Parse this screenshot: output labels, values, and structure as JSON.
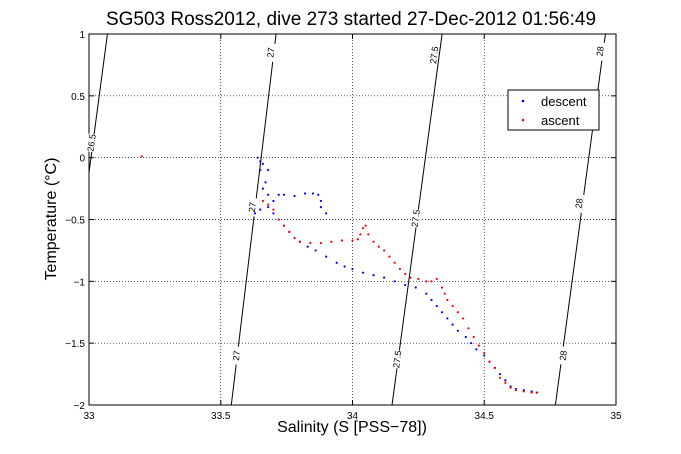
{
  "chart_data": {
    "type": "scatter",
    "title": "SG503 Ross2012, dive 273 started 27-Dec-2012 01:56:49",
    "xlabel": "Salinity (S [PSS−78])",
    "ylabel": "Temperature (°C)",
    "xlim": [
      33,
      35
    ],
    "ylim": [
      -2,
      1
    ],
    "xticks": [
      33,
      33.5,
      34,
      34.5,
      35
    ],
    "xtick_labels": [
      "33",
      "33.5",
      "34",
      "34.5",
      "35"
    ],
    "yticks": [
      -2,
      -1.5,
      -1,
      -0.5,
      0,
      0.5,
      1
    ],
    "ytick_labels": [
      "−2",
      "−1.5",
      "−1",
      "−0.5",
      "0",
      "0.5",
      "1"
    ],
    "grid": true,
    "legend_position": "top-right",
    "series": [
      {
        "name": "descent",
        "color": "#0000ff",
        "points": [
          [
            33.64,
            0.0
          ],
          [
            33.65,
            -0.03
          ],
          [
            33.66,
            -0.05
          ],
          [
            33.68,
            -0.1
          ],
          [
            33.65,
            -0.1
          ],
          [
            33.67,
            -0.2
          ],
          [
            33.66,
            -0.25
          ],
          [
            33.68,
            -0.3
          ],
          [
            33.7,
            -0.35
          ],
          [
            33.72,
            -0.3
          ],
          [
            33.74,
            -0.3
          ],
          [
            33.78,
            -0.31
          ],
          [
            33.82,
            -0.29
          ],
          [
            33.85,
            -0.29
          ],
          [
            33.87,
            -0.3
          ],
          [
            33.88,
            -0.35
          ],
          [
            33.88,
            -0.4
          ],
          [
            33.9,
            -0.45
          ],
          [
            33.63,
            -0.45
          ],
          [
            33.65,
            -0.42
          ],
          [
            33.68,
            -0.4
          ],
          [
            33.7,
            -0.45
          ],
          [
            33.72,
            -0.5
          ],
          [
            33.74,
            -0.55
          ],
          [
            33.76,
            -0.6
          ],
          [
            33.78,
            -0.65
          ],
          [
            33.8,
            -0.68
          ],
          [
            33.83,
            -0.72
          ],
          [
            33.86,
            -0.75
          ],
          [
            33.9,
            -0.8
          ],
          [
            33.94,
            -0.85
          ],
          [
            33.97,
            -0.88
          ],
          [
            34.0,
            -0.9
          ],
          [
            34.04,
            -0.93
          ],
          [
            34.08,
            -0.95
          ],
          [
            34.12,
            -0.97
          ],
          [
            34.16,
            -1.0
          ],
          [
            34.2,
            -1.03
          ],
          [
            34.24,
            -1.05
          ],
          [
            34.28,
            -1.1
          ],
          [
            34.3,
            -1.15
          ],
          [
            34.32,
            -1.2
          ],
          [
            34.34,
            -1.25
          ],
          [
            34.36,
            -1.3
          ],
          [
            34.38,
            -1.35
          ],
          [
            34.4,
            -1.4
          ],
          [
            34.43,
            -1.45
          ],
          [
            34.45,
            -1.5
          ],
          [
            34.47,
            -1.55
          ],
          [
            34.5,
            -1.6
          ],
          [
            34.52,
            -1.65
          ],
          [
            34.54,
            -1.7
          ],
          [
            34.56,
            -1.75
          ],
          [
            34.58,
            -1.8
          ],
          [
            34.6,
            -1.85
          ],
          [
            34.62,
            -1.87
          ],
          [
            34.65,
            -1.88
          ],
          [
            34.68,
            -1.89
          ],
          [
            34.7,
            -1.9
          ]
        ]
      },
      {
        "name": "ascent",
        "color": "#ff0000",
        "points": [
          [
            33.2,
            0.01
          ],
          [
            33.66,
            -0.35
          ],
          [
            33.68,
            -0.38
          ],
          [
            33.7,
            -0.42
          ],
          [
            33.72,
            -0.5
          ],
          [
            33.74,
            -0.55
          ],
          [
            33.76,
            -0.6
          ],
          [
            33.78,
            -0.65
          ],
          [
            33.8,
            -0.68
          ],
          [
            33.84,
            -0.69
          ],
          [
            33.88,
            -0.69
          ],
          [
            33.92,
            -0.68
          ],
          [
            33.96,
            -0.67
          ],
          [
            34.0,
            -0.67
          ],
          [
            34.02,
            -0.66
          ],
          [
            34.03,
            -0.62
          ],
          [
            34.04,
            -0.57
          ],
          [
            34.05,
            -0.55
          ],
          [
            34.06,
            -0.62
          ],
          [
            34.08,
            -0.68
          ],
          [
            34.1,
            -0.72
          ],
          [
            34.12,
            -0.75
          ],
          [
            34.14,
            -0.8
          ],
          [
            34.16,
            -0.85
          ],
          [
            34.18,
            -0.9
          ],
          [
            34.2,
            -0.94
          ],
          [
            34.22,
            -0.97
          ],
          [
            34.25,
            -0.98
          ],
          [
            34.28,
            -1.0
          ],
          [
            34.3,
            -1.0
          ],
          [
            34.32,
            -0.98
          ],
          [
            34.34,
            -1.05
          ],
          [
            34.35,
            -1.1
          ],
          [
            34.36,
            -1.15
          ],
          [
            34.38,
            -1.2
          ],
          [
            34.4,
            -1.25
          ],
          [
            34.42,
            -1.3
          ],
          [
            34.44,
            -1.38
          ],
          [
            34.46,
            -1.45
          ],
          [
            34.48,
            -1.52
          ],
          [
            34.5,
            -1.58
          ],
          [
            34.52,
            -1.65
          ],
          [
            34.54,
            -1.7
          ],
          [
            34.56,
            -1.78
          ],
          [
            34.58,
            -1.82
          ],
          [
            34.6,
            -1.86
          ],
          [
            34.62,
            -1.88
          ],
          [
            34.65,
            -1.89
          ],
          [
            34.68,
            -1.9
          ],
          [
            34.7,
            -1.9
          ]
        ]
      }
    ],
    "contours": [
      {
        "label": "26.5",
        "points": [
          [
            33.0,
            -0.12
          ],
          [
            33.07,
            1.0
          ]
        ],
        "label_positions": [
          [
            33.01,
            0.12
          ]
        ]
      },
      {
        "label": "27",
        "points": [
          [
            33.54,
            -2.0
          ],
          [
            33.71,
            1.0
          ]
        ],
        "label_positions": [
          [
            33.56,
            -1.6
          ],
          [
            33.62,
            -0.4
          ],
          [
            33.69,
            0.85
          ]
        ]
      },
      {
        "label": "27.5",
        "points": [
          [
            34.15,
            -2.0
          ],
          [
            34.34,
            1.0
          ]
        ],
        "label_positions": [
          [
            34.17,
            -1.63
          ],
          [
            34.24,
            -0.49
          ],
          [
            34.31,
            0.83
          ]
        ]
      },
      {
        "label": "28",
        "points": [
          [
            34.77,
            -2.0
          ],
          [
            34.96,
            1.0
          ]
        ],
        "label_positions": [
          [
            34.8,
            -1.6
          ],
          [
            34.86,
            -0.37
          ],
          [
            34.94,
            0.86
          ]
        ]
      }
    ]
  }
}
